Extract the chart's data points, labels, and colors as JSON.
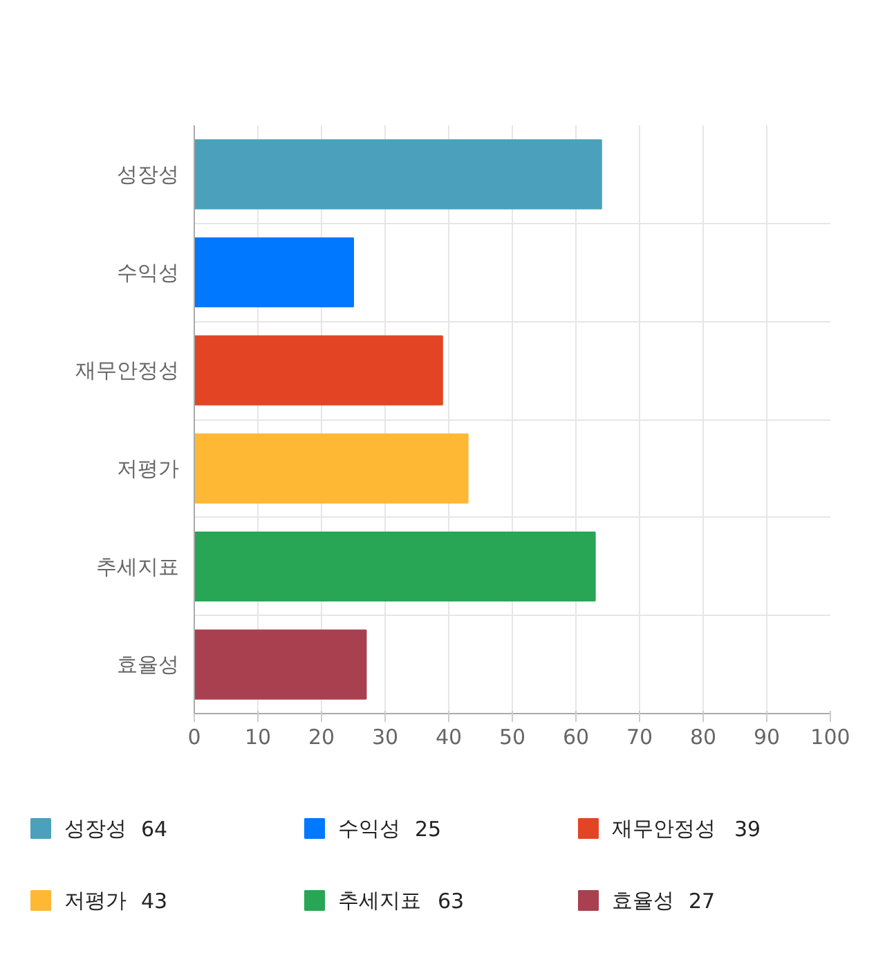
{
  "chart_data": {
    "type": "bar",
    "orientation": "horizontal",
    "categories": [
      "성장성",
      "수익성",
      "재무안정성",
      "저평가",
      "추세지표",
      "효율성"
    ],
    "series": [
      {
        "name": "성장성",
        "color": "#4ba1bc",
        "values": [
          64,
          null,
          null,
          null,
          null,
          null
        ]
      },
      {
        "name": "수익성",
        "color": "#0078ff",
        "values": [
          null,
          25,
          null,
          null,
          null,
          null
        ]
      },
      {
        "name": "재무안정성",
        "color": "#e34524",
        "values": [
          null,
          null,
          39,
          null,
          null,
          null
        ]
      },
      {
        "name": "저평가",
        "color": "#ffb833",
        "values": [
          null,
          null,
          null,
          43,
          null,
          null
        ]
      },
      {
        "name": "추세지표",
        "color": "#28a655",
        "values": [
          null,
          null,
          null,
          null,
          63,
          null
        ]
      },
      {
        "name": "효율성",
        "color": "#a9404f",
        "values": [
          null,
          null,
          null,
          null,
          null,
          27
        ]
      }
    ],
    "annotations": [
      "64",
      "25",
      "39",
      "43",
      "63",
      "27"
    ],
    "xlim": [
      0,
      100
    ],
    "xticks": [
      0,
      10,
      20,
      30,
      40,
      50,
      60,
      70,
      80,
      90,
      100
    ],
    "grid": true,
    "legend": "bottom"
  }
}
